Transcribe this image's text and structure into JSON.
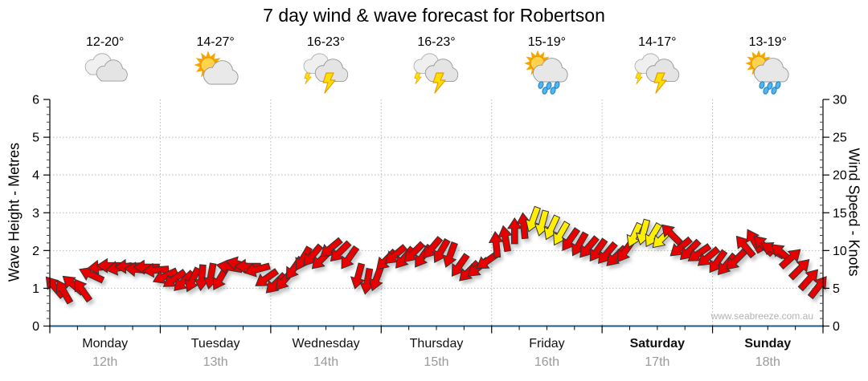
{
  "title": "7 day wind & wave forecast for Robertson",
  "watermark": "www.seabreeze.com.au",
  "colors": {
    "arrow_red": "#e80000",
    "arrow_yellow": "#ffee00",
    "arrow_outline": "#333333",
    "x_axis_line": "#1e5b7d",
    "grid": "#b8b8b8",
    "axis_black": "#000000",
    "date_gray": "#9a9a9a",
    "rain_blue": "#4fb6f2",
    "bolt_yellow": "#ffe000",
    "sun_orange": "#f5a800"
  },
  "days": [
    {
      "name": "Monday",
      "date": "12th",
      "temp": "12-20°",
      "icon": "cloudy",
      "bold": false
    },
    {
      "name": "Tuesday",
      "date": "13th",
      "temp": "14-27°",
      "icon": "partly-cloudy",
      "bold": false
    },
    {
      "name": "Wednesday",
      "date": "14th",
      "temp": "16-23°",
      "icon": "thunderstorm",
      "bold": false
    },
    {
      "name": "Thursday",
      "date": "15th",
      "temp": "16-23°",
      "icon": "thunderstorm",
      "bold": false
    },
    {
      "name": "Friday",
      "date": "16th",
      "temp": "15-19°",
      "icon": "sun-showers",
      "bold": false
    },
    {
      "name": "Saturday",
      "date": "17th",
      "temp": "14-17°",
      "icon": "thunderstorm",
      "bold": true
    },
    {
      "name": "Sunday",
      "date": "18th",
      "temp": "13-19°",
      "icon": "sun-showers",
      "bold": true
    }
  ],
  "chart_data": {
    "type": "wind-arrow-timeseries",
    "title": "7 day wind & wave forecast for Robertson",
    "left_axis": {
      "label": "Wave Height - Metres",
      "min": 0,
      "max": 6,
      "major_ticks": [
        0,
        1,
        2,
        3,
        4,
        5,
        6
      ]
    },
    "right_axis": {
      "label": "Wind Speed - Knots",
      "min": 0,
      "max": 30,
      "major_ticks": [
        0,
        5,
        10,
        15,
        20,
        25,
        30
      ]
    },
    "grid": true,
    "legend": "none",
    "arrow_note": "points are 2-hourly wind samples: [knots, direction_deg (0=arrow points up, clockwise), color r=red y=yellow]",
    "arrows": [
      [
        5.2,
        320,
        "r"
      ],
      [
        4.6,
        330,
        "r"
      ],
      [
        5.5,
        310,
        "r"
      ],
      [
        4.8,
        325,
        "r"
      ],
      [
        6.8,
        295,
        "r"
      ],
      [
        7.8,
        265,
        "r"
      ],
      [
        8.0,
        270,
        "r"
      ],
      [
        7.7,
        260,
        "r"
      ],
      [
        7.9,
        268,
        "r"
      ],
      [
        7.5,
        275,
        "r"
      ],
      [
        7.8,
        270,
        "r"
      ],
      [
        7.4,
        265,
        "r"
      ],
      [
        6.6,
        245,
        "r"
      ],
      [
        6.2,
        235,
        "r"
      ],
      [
        5.9,
        225,
        "r"
      ],
      [
        6.1,
        205,
        "r"
      ],
      [
        6.4,
        185,
        "r"
      ],
      [
        6.6,
        190,
        "r"
      ],
      [
        6.3,
        210,
        "r"
      ],
      [
        7.8,
        280,
        "r"
      ],
      [
        8.2,
        285,
        "r"
      ],
      [
        7.9,
        270,
        "r"
      ],
      [
        7.5,
        255,
        "r"
      ],
      [
        6.3,
        235,
        "r"
      ],
      [
        5.6,
        225,
        "r"
      ],
      [
        6.1,
        220,
        "r"
      ],
      [
        7.6,
        215,
        "r"
      ],
      [
        8.9,
        210,
        "r"
      ],
      [
        9.3,
        220,
        "r"
      ],
      [
        8.8,
        225,
        "r"
      ],
      [
        10.3,
        230,
        "r"
      ],
      [
        9.8,
        225,
        "r"
      ],
      [
        9.0,
        215,
        "r"
      ],
      [
        6.6,
        195,
        "r"
      ],
      [
        5.9,
        190,
        "r"
      ],
      [
        6.3,
        200,
        "r"
      ],
      [
        8.7,
        225,
        "r"
      ],
      [
        9.4,
        230,
        "r"
      ],
      [
        9.0,
        220,
        "r"
      ],
      [
        9.7,
        225,
        "r"
      ],
      [
        9.2,
        215,
        "r"
      ],
      [
        10.3,
        220,
        "r"
      ],
      [
        9.9,
        210,
        "r"
      ],
      [
        9.4,
        200,
        "r"
      ],
      [
        8.0,
        215,
        "r"
      ],
      [
        7.2,
        225,
        "r"
      ],
      [
        7.7,
        230,
        "r"
      ],
      [
        8.6,
        235,
        "r"
      ],
      [
        10.8,
        355,
        "r"
      ],
      [
        11.6,
        350,
        "r"
      ],
      [
        12.6,
        0,
        "r"
      ],
      [
        13.3,
        355,
        "r"
      ],
      [
        14.1,
        200,
        "y"
      ],
      [
        13.6,
        195,
        "y"
      ],
      [
        13.0,
        205,
        "y"
      ],
      [
        12.2,
        210,
        "y"
      ],
      [
        11.4,
        215,
        "r"
      ],
      [
        10.8,
        210,
        "r"
      ],
      [
        10.4,
        220,
        "r"
      ],
      [
        10.0,
        215,
        "r"
      ],
      [
        9.6,
        220,
        "r"
      ],
      [
        9.2,
        225,
        "r"
      ],
      [
        9.9,
        215,
        "r"
      ],
      [
        12.0,
        205,
        "y"
      ],
      [
        12.4,
        195,
        "y"
      ],
      [
        12.0,
        210,
        "y"
      ],
      [
        11.6,
        225,
        "y"
      ],
      [
        12.2,
        315,
        "r"
      ],
      [
        10.4,
        230,
        "r"
      ],
      [
        10.0,
        225,
        "r"
      ],
      [
        9.6,
        235,
        "r"
      ],
      [
        9.1,
        230,
        "r"
      ],
      [
        8.5,
        215,
        "r"
      ],
      [
        8.1,
        220,
        "r"
      ],
      [
        8.7,
        225,
        "r"
      ],
      [
        10.6,
        320,
        "r"
      ],
      [
        11.3,
        330,
        "r"
      ],
      [
        10.7,
        315,
        "r"
      ],
      [
        10.1,
        300,
        "r"
      ],
      [
        9.7,
        310,
        "r"
      ],
      [
        9.0,
        48,
        "r"
      ],
      [
        7.6,
        45,
        "r"
      ],
      [
        6.2,
        42,
        "r"
      ],
      [
        5.2,
        38,
        "r"
      ]
    ]
  }
}
